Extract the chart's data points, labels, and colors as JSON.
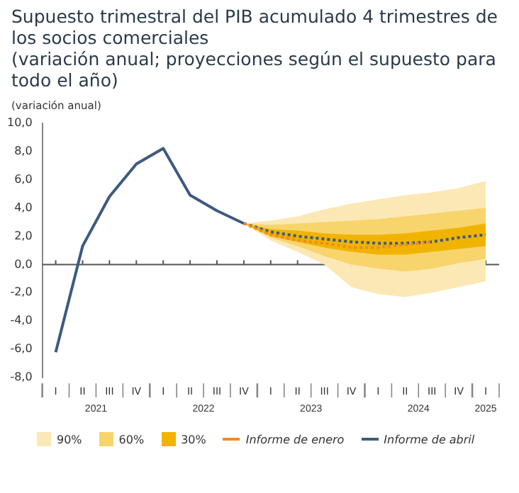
{
  "chart_data": {
    "type": "line",
    "title": "Supuesto trimestral del PIB acumulado 4 trimestres de los socios comerciales",
    "subtitle": "(variación anual; proyecciones según el supuesto para todo el año)",
    "ylabel": "(variación anual)",
    "categories": [
      "I",
      "II",
      "III",
      "IV",
      "I",
      "II",
      "III",
      "IV",
      "I",
      "II",
      "III",
      "IV",
      "I",
      "II",
      "III",
      "IV",
      "I"
    ],
    "series": [
      {
        "name": "90%",
        "type": "area",
        "color": "#fbe8b4",
        "values": [
          null,
          null,
          null,
          null,
          null,
          null,
          null,
          null,
          null,
          null,
          null,
          null,
          null,
          null,
          null,
          null,
          null
        ],
        "lower": [
          null,
          null,
          null,
          null,
          null,
          null,
          null,
          2.9,
          1.7,
          0.9,
          0.0,
          -1.6,
          -2.1,
          -2.3,
          -2.0,
          -1.6,
          -1.2
        ],
        "upper": [
          null,
          null,
          null,
          null,
          null,
          null,
          null,
          2.9,
          3.1,
          3.4,
          3.9,
          4.3,
          4.6,
          4.9,
          5.1,
          5.4,
          5.9
        ]
      },
      {
        "name": "60%",
        "type": "area",
        "color": "#f8d46c",
        "values": [
          null,
          null,
          null,
          null,
          null,
          null,
          null,
          null,
          null,
          null,
          null,
          null,
          null,
          null,
          null,
          null,
          null
        ],
        "lower": [
          null,
          null,
          null,
          null,
          null,
          null,
          null,
          2.9,
          1.9,
          1.3,
          0.6,
          0.0,
          -0.3,
          -0.5,
          -0.3,
          0.1,
          0.4
        ],
        "upper": [
          null,
          null,
          null,
          null,
          null,
          null,
          null,
          2.9,
          2.8,
          2.9,
          3.0,
          3.1,
          3.2,
          3.4,
          3.6,
          3.8,
          4.0
        ]
      },
      {
        "name": "30%",
        "type": "area",
        "color": "#f0b400",
        "values": [
          null,
          null,
          null,
          null,
          null,
          null,
          null,
          null,
          null,
          null,
          null,
          null,
          null,
          null,
          null,
          null,
          null
        ],
        "lower": [
          null,
          null,
          null,
          null,
          null,
          null,
          null,
          2.9,
          2.0,
          1.6,
          1.2,
          0.9,
          0.7,
          0.7,
          0.9,
          1.1,
          1.3
        ],
        "upper": [
          null,
          null,
          null,
          null,
          null,
          null,
          null,
          2.9,
          2.5,
          2.4,
          2.2,
          2.1,
          2.1,
          2.2,
          2.4,
          2.6,
          2.9
        ]
      },
      {
        "name": "Informe de enero",
        "type": "line",
        "color": "#f08a24",
        "line_style": "dotted",
        "values": [
          null,
          null,
          null,
          null,
          null,
          null,
          null,
          2.9,
          2.1,
          1.7,
          1.5,
          1.2,
          1.2,
          1.4,
          1.6,
          null,
          null
        ]
      },
      {
        "name": "Informe de abril",
        "type": "line",
        "color": "#3d5a80",
        "line_style": "solid",
        "values": [
          -6.2,
          1.3,
          4.8,
          7.1,
          8.2,
          4.9,
          3.8,
          2.9,
          null,
          null,
          null,
          null,
          null,
          null,
          null,
          null,
          null
        ]
      },
      {
        "type": "line",
        "color": "#3d5a80",
        "line_style": "dotted",
        "values": [
          null,
          null,
          null,
          null,
          null,
          null,
          null,
          2.9,
          2.3,
          2.0,
          1.8,
          1.6,
          1.5,
          1.5,
          1.6,
          1.9,
          2.1
        ]
      }
    ],
    "ylim": [
      -8,
      10
    ],
    "yticks": [
      {
        "value": -8,
        "label": "-8,0"
      },
      {
        "value": -6,
        "label": "-6,0"
      },
      {
        "value": -4,
        "label": "-4,0"
      },
      {
        "value": -2,
        "label": "-2,0"
      },
      {
        "value": 0,
        "label": "0,0"
      },
      {
        "value": 2,
        "label": "2,0"
      },
      {
        "value": 4,
        "label": "4,0"
      },
      {
        "value": 6,
        "label": "6,0"
      },
      {
        "value": 8,
        "label": "8,0"
      },
      {
        "value": 10,
        "label": "10,0"
      }
    ],
    "grid": false,
    "legend": "bottom",
    "marker": "none",
    "ref_lines": [
      {
        "axis": "y",
        "value": 0,
        "color": "#555555"
      }
    ],
    "annotations": [
      "2021",
      "2022",
      "2023",
      "2024",
      "2025"
    ]
  }
}
